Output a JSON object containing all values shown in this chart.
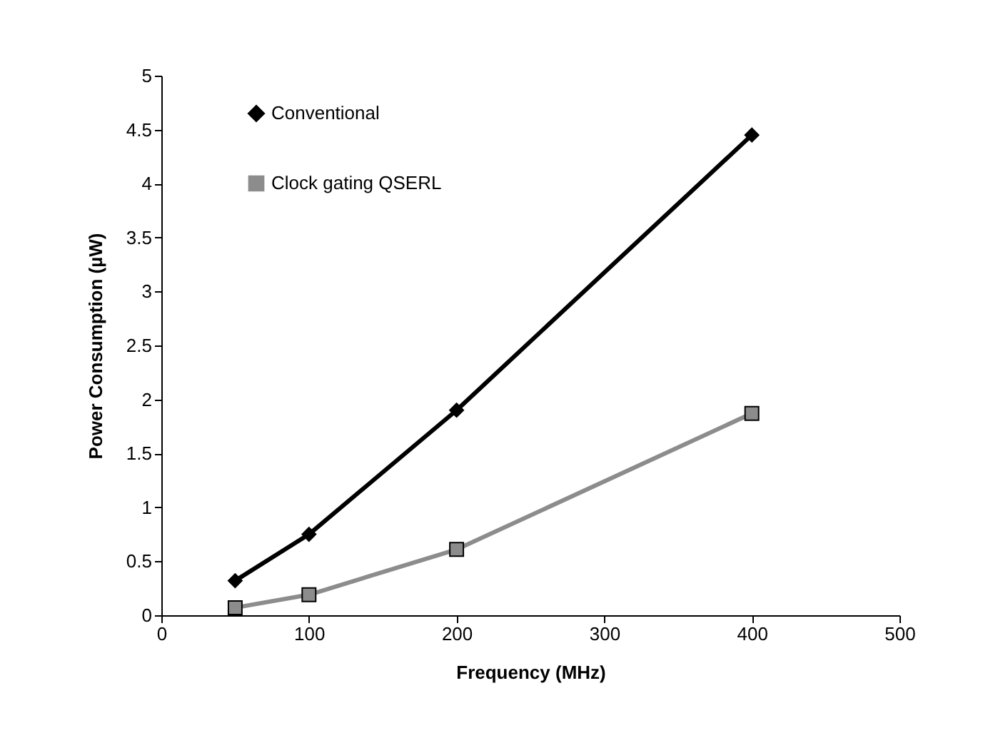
{
  "chart_data": {
    "type": "line",
    "xlabel": "Frequency (MHz)",
    "ylabel": "Power Consumption (µW)",
    "x": [
      50,
      100,
      200,
      400
    ],
    "series": [
      {
        "name": "Conventional",
        "color": "#000000",
        "marker": "diamond",
        "values": [
          0.32,
          0.75,
          1.9,
          4.45
        ]
      },
      {
        "name": "Clock gating QSERL",
        "color": "#8c8c8c",
        "marker": "square",
        "values": [
          0.07,
          0.19,
          0.61,
          1.87
        ]
      }
    ],
    "xlim": [
      0,
      500
    ],
    "xticks": [
      0,
      100,
      200,
      300,
      400,
      500
    ],
    "ylim": [
      0,
      5
    ],
    "yticks": [
      0,
      0.5,
      1,
      1.5,
      2,
      2.5,
      3,
      3.5,
      4,
      4.5,
      5
    ],
    "grid": false,
    "legend": "top left",
    "line_style": "solid"
  }
}
